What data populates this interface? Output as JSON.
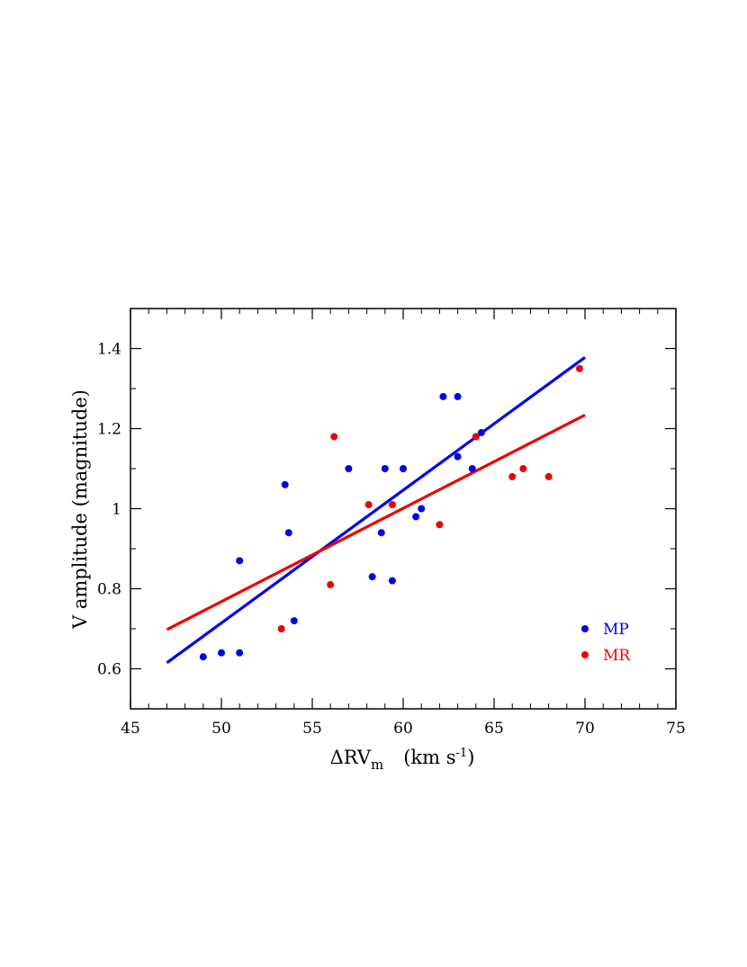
{
  "chart_data": {
    "type": "scatter",
    "xlabel": {
      "main": "ΔRV",
      "sub": "m",
      "units": "(km s",
      "sup": "-1",
      "close": ")"
    },
    "ylabel": "V amplitude (magnitude)",
    "xlim": [
      45,
      75
    ],
    "ylim": [
      0.5,
      1.5
    ],
    "x_ticks": [
      {
        "value": 45,
        "label": "45"
      },
      {
        "value": 50,
        "label": "50"
      },
      {
        "value": 55,
        "label": "55"
      },
      {
        "value": 60,
        "label": "60"
      },
      {
        "value": 65,
        "label": "65"
      },
      {
        "value": 70,
        "label": "70"
      },
      {
        "value": 75,
        "label": "75"
      }
    ],
    "y_ticks": [
      {
        "value": 0.6,
        "label": "0.6"
      },
      {
        "value": 0.8,
        "label": "0.8"
      },
      {
        "value": 1.0,
        "label": "1"
      },
      {
        "value": 1.2,
        "label": "1.2"
      },
      {
        "value": 1.4,
        "label": "1.4"
      }
    ],
    "x_minor_step": 1,
    "y_minor_step": 0.1,
    "legend_position": "lower-right",
    "series": [
      {
        "name": "MP",
        "color": "#0000ee",
        "points": [
          [
            49.0,
            0.63
          ],
          [
            50.0,
            0.64
          ],
          [
            51.0,
            0.64
          ],
          [
            51.0,
            0.87
          ],
          [
            53.5,
            1.06
          ],
          [
            53.7,
            0.94
          ],
          [
            54.0,
            0.72
          ],
          [
            57.0,
            1.1
          ],
          [
            58.3,
            0.83
          ],
          [
            58.8,
            0.94
          ],
          [
            59.0,
            1.1
          ],
          [
            59.4,
            0.82
          ],
          [
            60.0,
            1.1
          ],
          [
            60.7,
            0.98
          ],
          [
            61.0,
            1.0
          ],
          [
            62.2,
            1.28
          ],
          [
            63.0,
            1.28
          ],
          [
            63.0,
            1.13
          ],
          [
            63.8,
            1.1
          ],
          [
            64.3,
            1.19
          ]
        ],
        "fit": [
          [
            47.0,
            0.615
          ],
          [
            70.0,
            1.378
          ]
        ]
      },
      {
        "name": "MR",
        "color": "#ee0000",
        "points": [
          [
            53.3,
            0.7
          ],
          [
            56.0,
            0.81
          ],
          [
            56.2,
            1.18
          ],
          [
            58.1,
            1.01
          ],
          [
            59.4,
            1.01
          ],
          [
            62.0,
            0.96
          ],
          [
            64.0,
            1.18
          ],
          [
            66.0,
            1.08
          ],
          [
            66.6,
            1.1
          ],
          [
            68.0,
            1.08
          ],
          [
            69.7,
            1.35
          ]
        ],
        "fit": [
          [
            47.0,
            0.698
          ],
          [
            70.0,
            1.234
          ]
        ]
      }
    ]
  }
}
